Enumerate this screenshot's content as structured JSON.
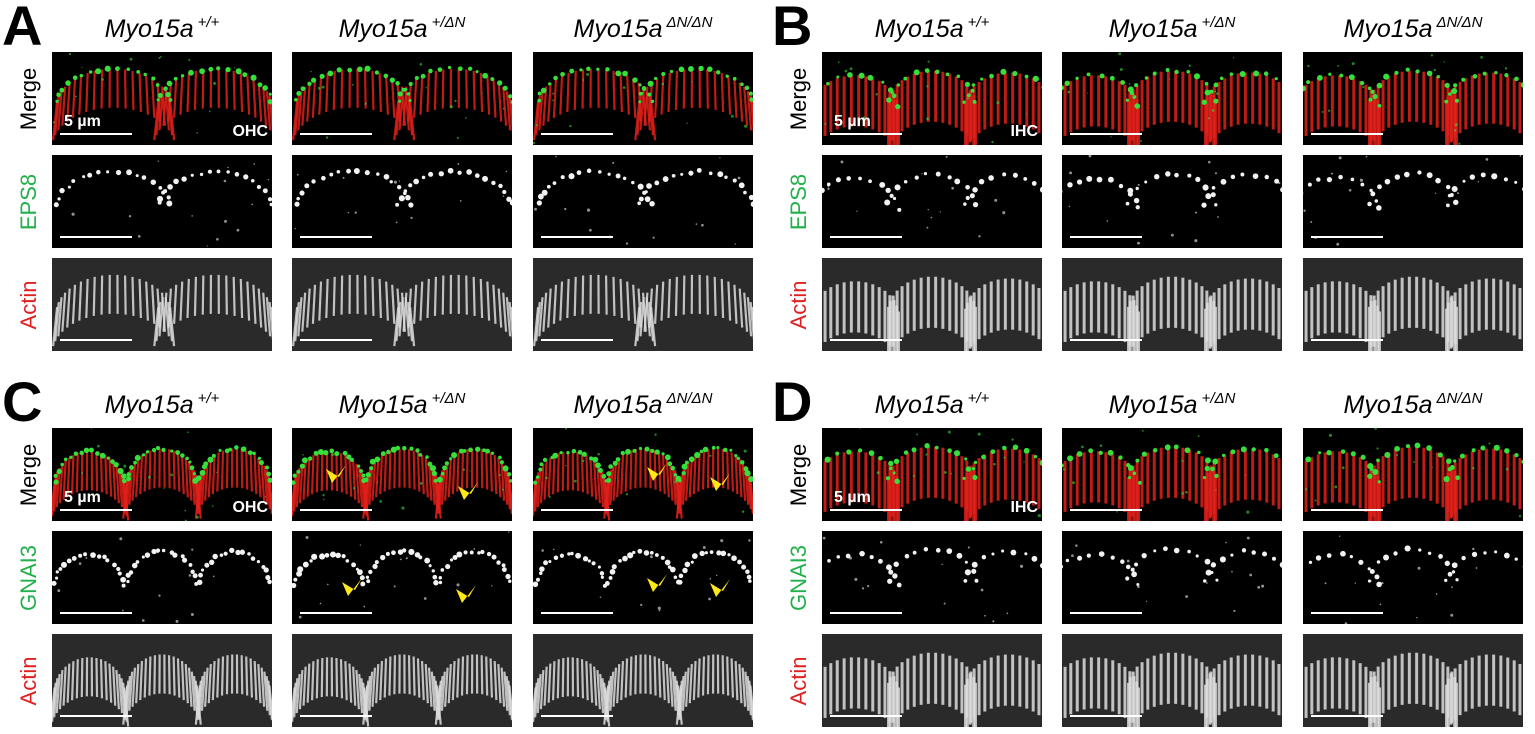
{
  "figure": {
    "panels": [
      {
        "letter": "A",
        "cell_type": "OHC",
        "stain": "EPS8",
        "columns": [
          {
            "gene": "Myo15a",
            "genotype": "+/+"
          },
          {
            "gene": "Myo15a",
            "genotype": "+/ΔN"
          },
          {
            "gene": "Myo15a",
            "genotype": "ΔN/ΔN"
          }
        ],
        "rows": [
          {
            "label": "Merge",
            "label_color": "#000000"
          },
          {
            "label": "EPS8",
            "label_color": "#22b04b"
          },
          {
            "label": "Actin",
            "label_color": "#e02020"
          }
        ],
        "scale_label": "5 µm"
      },
      {
        "letter": "B",
        "cell_type": "IHC",
        "stain": "EPS8",
        "columns": [
          {
            "gene": "Myo15a",
            "genotype": "+/+"
          },
          {
            "gene": "Myo15a",
            "genotype": "+/ΔN"
          },
          {
            "gene": "Myo15a",
            "genotype": "ΔN/ΔN"
          }
        ],
        "rows": [
          {
            "label": "Merge",
            "label_color": "#000000"
          },
          {
            "label": "EPS8",
            "label_color": "#22b04b"
          },
          {
            "label": "Actin",
            "label_color": "#e02020"
          }
        ],
        "scale_label": "5 µm"
      },
      {
        "letter": "C",
        "cell_type": "OHC",
        "stain": "GNAI3",
        "columns": [
          {
            "gene": "Myo15a",
            "genotype": "+/+"
          },
          {
            "gene": "Myo15a",
            "genotype": "+/ΔN"
          },
          {
            "gene": "Myo15a",
            "genotype": "ΔN/ΔN"
          }
        ],
        "rows": [
          {
            "label": "Merge",
            "label_color": "#000000"
          },
          {
            "label": "GNAI3",
            "label_color": "#22b04b"
          },
          {
            "label": "Actin",
            "label_color": "#e02020"
          }
        ],
        "scale_label": "5 µm"
      },
      {
        "letter": "D",
        "cell_type": "IHC",
        "stain": "GNAI3",
        "columns": [
          {
            "gene": "Myo15a",
            "genotype": "+/+"
          },
          {
            "gene": "Myo15a",
            "genotype": "+/ΔN"
          },
          {
            "gene": "Myo15a",
            "genotype": "ΔN/ΔN"
          }
        ],
        "rows": [
          {
            "label": "Merge",
            "label_color": "#000000"
          },
          {
            "label": "GNAI3",
            "label_color": "#22b04b"
          },
          {
            "label": "Actin",
            "label_color": "#e02020"
          }
        ],
        "scale_label": "5 µm"
      }
    ],
    "colors": {
      "actin_red": "#e3201a",
      "stain_green": "#35e03a",
      "arrowhead_yellow": "#ffe81a",
      "grayscale": "#ffffff"
    },
    "icons": {
      "arrowhead": "arrowhead-icon"
    }
  }
}
